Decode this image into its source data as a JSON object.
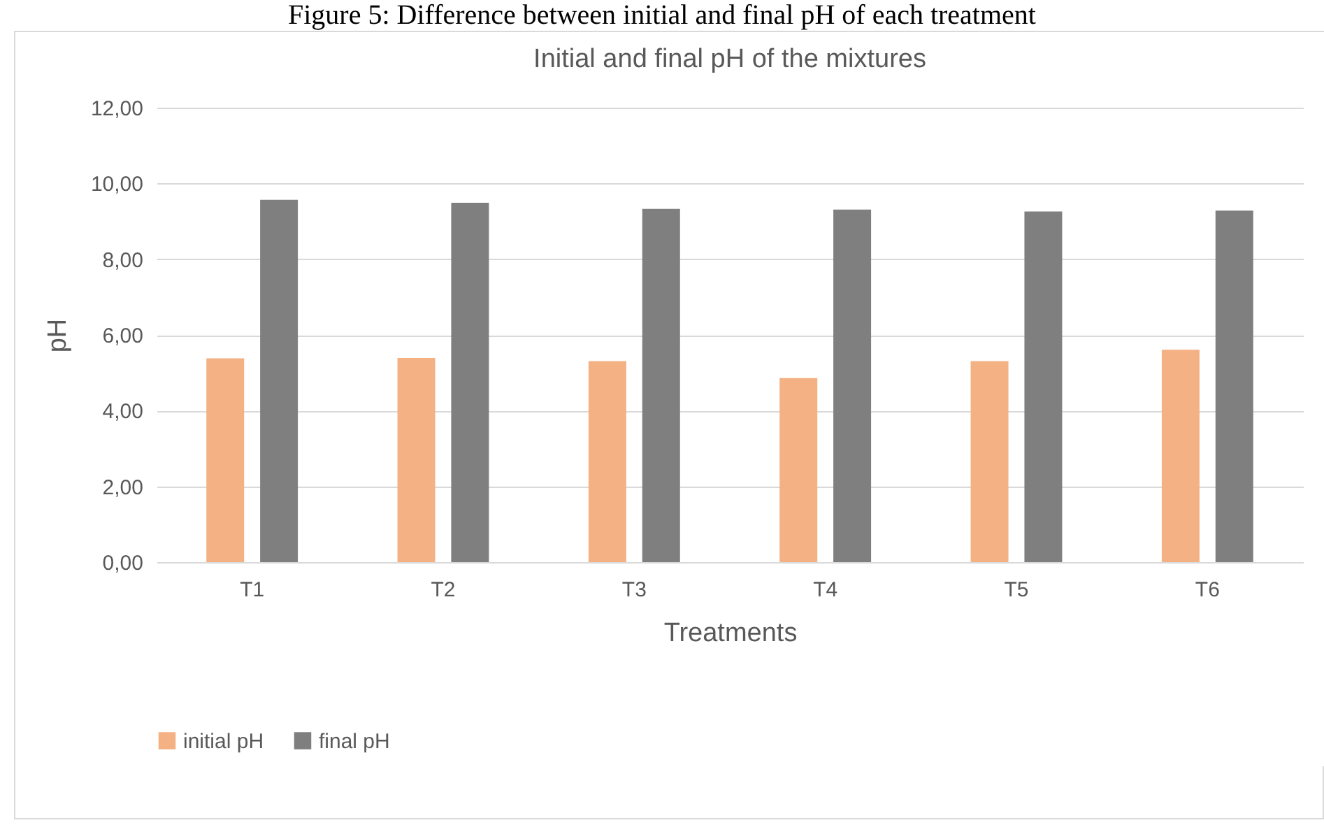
{
  "chart_data": {
    "type": "bar",
    "title": "Initial and final pH of the mixtures",
    "xlabel": "Treatments",
    "ylabel": "pH",
    "annotations": [
      "Figure 5: Difference between initial and final pH of each treatment"
    ],
    "categories": [
      "T1",
      "T2",
      "T3",
      "T4",
      "T5",
      "T6"
    ],
    "series": [
      {
        "name": "initial pH",
        "color": "#f4b183",
        "values": [
          5.38,
          5.39,
          5.31,
          4.86,
          5.31,
          5.61
        ]
      },
      {
        "name": "final pH",
        "color": "#7f7f7f",
        "values": [
          9.57,
          9.49,
          9.33,
          9.31,
          9.26,
          9.28
        ]
      }
    ],
    "ylim": [
      0,
      12
    ],
    "yticks": [
      {
        "value": 0,
        "label": "0,00"
      },
      {
        "value": 2,
        "label": "2,00"
      },
      {
        "value": 4,
        "label": "4,00"
      },
      {
        "value": 6,
        "label": "6,00"
      },
      {
        "value": 8,
        "label": "8,00"
      },
      {
        "value": 10,
        "label": "10,00"
      },
      {
        "value": 12,
        "label": "12,00"
      }
    ],
    "grid": "y",
    "legend": "bottom"
  }
}
